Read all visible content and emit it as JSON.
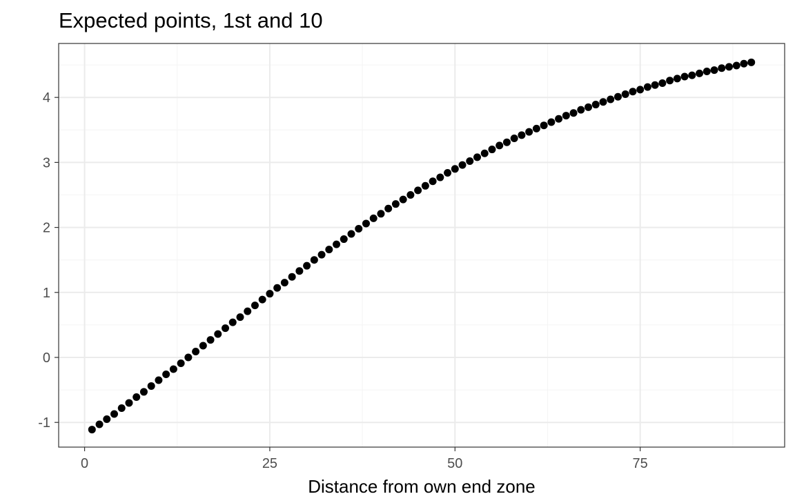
{
  "chart_data": {
    "type": "scatter",
    "title": "Expected points, 1st and 10",
    "xlabel": "Distance from own end zone",
    "ylabel": "",
    "xlim": [
      -3.5,
      94.5
    ],
    "ylim": [
      -1.38,
      4.83
    ],
    "x_ticks": [
      0,
      25,
      50,
      75
    ],
    "x_tick_labels": [
      "0",
      "25",
      "50",
      "75"
    ],
    "x_minor_ticks": [
      12.5,
      37.5,
      62.5,
      87.5
    ],
    "y_ticks": [
      -1,
      0,
      1,
      2,
      3,
      4
    ],
    "y_tick_labels": [
      "-1",
      "0",
      "1",
      "2",
      "3",
      "4"
    ],
    "y_minor_ticks": [
      -0.5,
      0.5,
      1.5,
      2.5,
      3.5,
      4.5
    ],
    "grid": true,
    "legend": "none",
    "colors": {
      "point": "#000000",
      "panel_border": "#333333",
      "grid_major": "#ebebeb",
      "grid_minor": "#f4f4f4",
      "tick_label": "#4d4d4d"
    },
    "series": [
      {
        "x": [
          1,
          2,
          3,
          4,
          5,
          6,
          7,
          8,
          9,
          10,
          11,
          12,
          13,
          14,
          15,
          16,
          17,
          18,
          19,
          20,
          21,
          22,
          23,
          24,
          25,
          26,
          27,
          28,
          29,
          30,
          31,
          32,
          33,
          34,
          35,
          36,
          37,
          38,
          39,
          40,
          41,
          42,
          43,
          44,
          45,
          46,
          47,
          48,
          49,
          50,
          51,
          52,
          53,
          54,
          55,
          56,
          57,
          58,
          59,
          60,
          61,
          62,
          63,
          64,
          65,
          66,
          67,
          68,
          69,
          70,
          71,
          72,
          73,
          74,
          75,
          76,
          77,
          78,
          79,
          80,
          81,
          82,
          83,
          84,
          85,
          86,
          87,
          88,
          89,
          90
        ],
        "y": [
          -1.11,
          -1.03,
          -0.95,
          -0.87,
          -0.78,
          -0.7,
          -0.61,
          -0.53,
          -0.44,
          -0.35,
          -0.26,
          -0.18,
          -0.09,
          0.0,
          0.09,
          0.18,
          0.27,
          0.36,
          0.45,
          0.54,
          0.62,
          0.71,
          0.8,
          0.89,
          0.98,
          1.07,
          1.15,
          1.24,
          1.33,
          1.41,
          1.5,
          1.58,
          1.66,
          1.74,
          1.82,
          1.9,
          1.98,
          2.06,
          2.14,
          2.21,
          2.29,
          2.36,
          2.43,
          2.5,
          2.57,
          2.64,
          2.71,
          2.77,
          2.84,
          2.9,
          2.96,
          3.02,
          3.08,
          3.14,
          3.2,
          3.26,
          3.31,
          3.37,
          3.42,
          3.47,
          3.52,
          3.57,
          3.62,
          3.67,
          3.72,
          3.76,
          3.81,
          3.85,
          3.89,
          3.93,
          3.97,
          4.01,
          4.05,
          4.09,
          4.12,
          4.16,
          4.19,
          4.22,
          4.26,
          4.29,
          4.32,
          4.34,
          4.37,
          4.4,
          4.42,
          4.45,
          4.47,
          4.49,
          4.52,
          4.54
        ]
      }
    ]
  }
}
